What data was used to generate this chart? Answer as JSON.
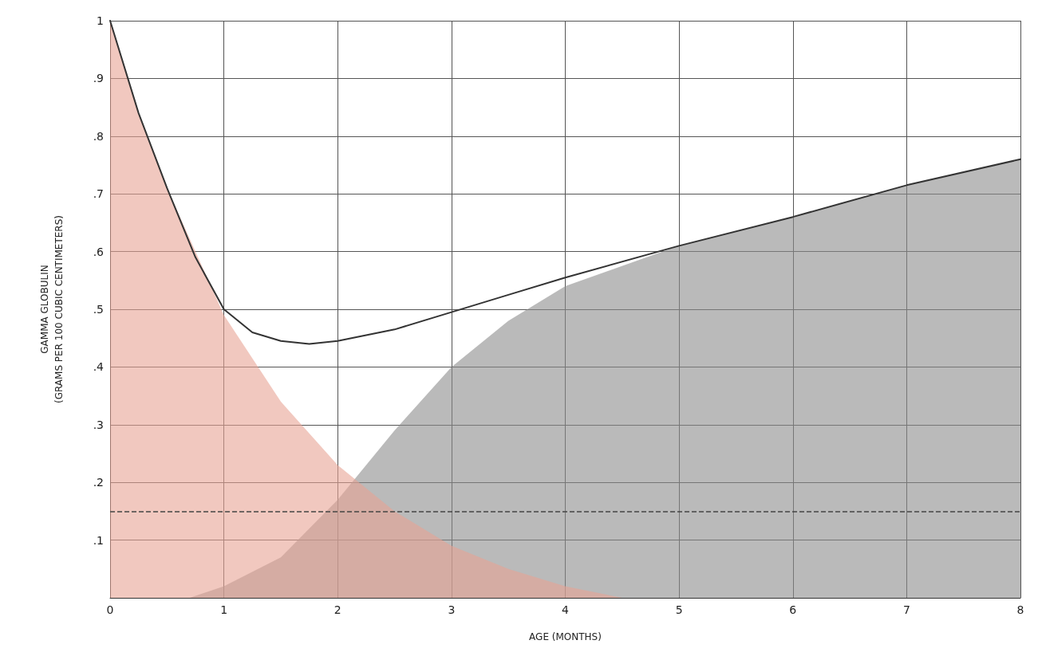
{
  "chart_data": {
    "type": "area",
    "xlabel": "AGE (MONTHS)",
    "ylabel": "GAMMA GLOBULIN\n(GRAMS PER 100 CUBIC CENTIMETERS)",
    "xlim": [
      0,
      8
    ],
    "ylim": [
      0,
      1
    ],
    "xticks": [
      0,
      1,
      2,
      3,
      4,
      5,
      6,
      7,
      8
    ],
    "yticks": [
      {
        "value": 0,
        "label": null
      },
      {
        "value": 0.1,
        "label": ".1"
      },
      {
        "value": 0.2,
        "label": ".2"
      },
      {
        "value": 0.3,
        "label": ".3"
      },
      {
        "value": 0.4,
        "label": ".4"
      },
      {
        "value": 0.5,
        "label": ".5"
      },
      {
        "value": 0.6,
        "label": ".6"
      },
      {
        "value": 0.7,
        "label": ".7"
      },
      {
        "value": 0.8,
        "label": ".8"
      },
      {
        "value": 0.9,
        "label": ".9"
      },
      {
        "value": 1,
        "label": "1"
      }
    ],
    "grid": true,
    "marker": "none",
    "series": [
      {
        "color": "#8c8c8c",
        "x": [
          0.7,
          1,
          1.5,
          2,
          2.5,
          3,
          3.5,
          4,
          5,
          6,
          7,
          8
        ],
        "values": [
          0,
          0.02,
          0.07,
          0.17,
          0.29,
          0.4,
          0.48,
          0.54,
          0.61,
          0.66,
          0.715,
          0.76
        ]
      },
      {
        "color": "#e8a395",
        "x": [
          0,
          0.25,
          0.5,
          0.75,
          1,
          1.5,
          2,
          2.5,
          3,
          3.5,
          4,
          4.5
        ],
        "values": [
          1,
          0.84,
          0.71,
          0.6,
          0.49,
          0.34,
          0.23,
          0.15,
          0.09,
          0.05,
          0.02,
          0
        ]
      },
      {
        "type": "line",
        "color": "#333333",
        "line_style": "solid",
        "x": [
          0,
          0.25,
          0.5,
          0.75,
          1,
          1.25,
          1.5,
          1.75,
          2,
          2.5,
          3,
          3.5,
          4,
          5,
          6,
          7,
          8
        ],
        "values": [
          1,
          0.84,
          0.71,
          0.59,
          0.5,
          0.46,
          0.445,
          0.44,
          0.445,
          0.465,
          0.495,
          0.525,
          0.555,
          0.61,
          0.66,
          0.715,
          0.76
        ]
      }
    ],
    "ref_lines": [
      {
        "axis": "y",
        "value": 0.15,
        "label": null,
        "color": "#444444",
        "line_style": "dashed"
      }
    ]
  }
}
